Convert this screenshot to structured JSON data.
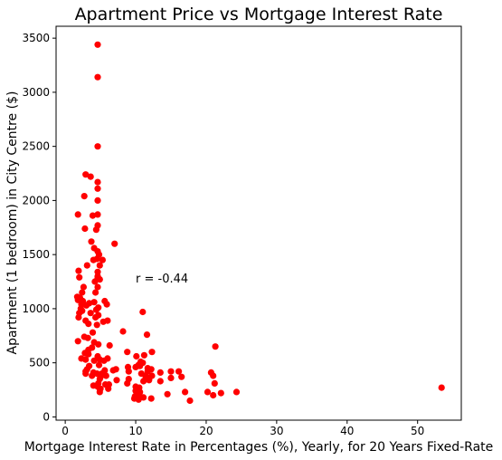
{
  "chart_data": {
    "type": "scatter",
    "title": "Apartment Price vs Mortgage Interest Rate",
    "xlabel": "Mortgage Interest Rate in Percentages (%), Yearly, for 20 Years Fixed-Rate",
    "ylabel": "Apartment (1 bedroom) in City Centre ($)",
    "xlim": [
      -1.3,
      56.2
    ],
    "ylim": [
      -30,
      3610
    ],
    "xticks": [
      0,
      10,
      20,
      30,
      40,
      50
    ],
    "yticks": [
      0,
      500,
      1000,
      1500,
      2000,
      2500,
      3000,
      3500
    ],
    "annotation": {
      "text": "r = -0.44",
      "x": 10,
      "y": 1240
    },
    "grid": false,
    "legend": "none",
    "color": "#ff0000",
    "points": [
      [
        4.6,
        3440
      ],
      [
        4.6,
        3140
      ],
      [
        4.6,
        2500
      ],
      [
        2.9,
        2240
      ],
      [
        3.6,
        2220
      ],
      [
        4.6,
        2170
      ],
      [
        4.6,
        2110
      ],
      [
        2.7,
        2040
      ],
      [
        4.6,
        2000
      ],
      [
        1.8,
        1870
      ],
      [
        4.6,
        1870
      ],
      [
        3.9,
        1860
      ],
      [
        4.6,
        1770
      ],
      [
        4.4,
        1730
      ],
      [
        2.8,
        1740
      ],
      [
        7.0,
        1600
      ],
      [
        3.7,
        1620
      ],
      [
        4.1,
        1560
      ],
      [
        4.6,
        1530
      ],
      [
        4.8,
        1500
      ],
      [
        4.5,
        1460
      ],
      [
        5.3,
        1450
      ],
      [
        4.0,
        1450
      ],
      [
        3.1,
        1400
      ],
      [
        4.9,
        1400
      ],
      [
        4.6,
        1340
      ],
      [
        1.9,
        1350
      ],
      [
        4.6,
        1300
      ],
      [
        4.6,
        1280
      ],
      [
        2.0,
        1290
      ],
      [
        4.9,
        1270
      ],
      [
        4.2,
        1250
      ],
      [
        2.6,
        1200
      ],
      [
        4.6,
        1200
      ],
      [
        4.3,
        1150
      ],
      [
        2.4,
        1150
      ],
      [
        1.7,
        1110
      ],
      [
        2.1,
        1100
      ],
      [
        2.5,
        1070
      ],
      [
        3.4,
        1050
      ],
      [
        1.8,
        1080
      ],
      [
        2.3,
        1040
      ],
      [
        4.1,
        1060
      ],
      [
        3.0,
        1030
      ],
      [
        5.6,
        1070
      ],
      [
        5.9,
        1040
      ],
      [
        4.7,
        1010
      ],
      [
        2.2,
        1000
      ],
      [
        4.4,
        990
      ],
      [
        2.4,
        980
      ],
      [
        2.0,
        960
      ],
      [
        11.0,
        970
      ],
      [
        3.6,
        960
      ],
      [
        4.7,
        940
      ],
      [
        1.9,
        920
      ],
      [
        4.3,
        920
      ],
      [
        2.9,
        890
      ],
      [
        6.0,
        890
      ],
      [
        5.4,
        880
      ],
      [
        3.3,
        860
      ],
      [
        4.5,
        850
      ],
      [
        3.9,
        780
      ],
      [
        8.2,
        790
      ],
      [
        11.6,
        760
      ],
      [
        2.7,
        740
      ],
      [
        3.2,
        730
      ],
      [
        1.8,
        700
      ],
      [
        4.1,
        690
      ],
      [
        4.7,
        670
      ],
      [
        6.3,
        660
      ],
      [
        21.3,
        650
      ],
      [
        3.8,
        640
      ],
      [
        3.3,
        620
      ],
      [
        2.8,
        590
      ],
      [
        8.8,
        600
      ],
      [
        12.3,
        600
      ],
      [
        3.3,
        580
      ],
      [
        4.6,
        560
      ],
      [
        2.3,
        540
      ],
      [
        11.2,
        570
      ],
      [
        10.1,
        560
      ],
      [
        4.9,
        530
      ],
      [
        6.0,
        540
      ],
      [
        4.1,
        520
      ],
      [
        2.9,
        530
      ],
      [
        5.5,
        520
      ],
      [
        11.0,
        500
      ],
      [
        10.4,
        480
      ],
      [
        4.8,
        480
      ],
      [
        3.4,
        470
      ],
      [
        10.0,
        460
      ],
      [
        10.6,
        470
      ],
      [
        8.9,
        460
      ],
      [
        11.7,
        450
      ],
      [
        12.2,
        440
      ],
      [
        6.8,
        430
      ],
      [
        5.6,
        430
      ],
      [
        7.2,
        440
      ],
      [
        9.0,
        420
      ],
      [
        2.9,
        420
      ],
      [
        4.0,
        410
      ],
      [
        4.5,
        400
      ],
      [
        5.2,
        400
      ],
      [
        11.7,
        420
      ],
      [
        10.8,
        400
      ],
      [
        20.7,
        410
      ],
      [
        13.5,
        410
      ],
      [
        15.0,
        420
      ],
      [
        16.1,
        420
      ],
      [
        2.9,
        400
      ],
      [
        3.8,
        380
      ],
      [
        5.0,
        370
      ],
      [
        5.8,
        380
      ],
      [
        11.4,
        380
      ],
      [
        12.3,
        380
      ],
      [
        21.0,
        380
      ],
      [
        16.5,
        370
      ],
      [
        15.0,
        360
      ],
      [
        4.9,
        350
      ],
      [
        7.3,
        340
      ],
      [
        9.0,
        350
      ],
      [
        11.9,
        340
      ],
      [
        13.5,
        330
      ],
      [
        11.1,
        330
      ],
      [
        8.8,
        310
      ],
      [
        4.7,
        310
      ],
      [
        5.7,
        300
      ],
      [
        6.2,
        300
      ],
      [
        4.0,
        290
      ],
      [
        4.6,
        280
      ],
      [
        10.0,
        280
      ],
      [
        10.5,
        270
      ],
      [
        4.9,
        260
      ],
      [
        5.0,
        260
      ],
      [
        6.1,
        260
      ],
      [
        10.0,
        240
      ],
      [
        10.6,
        230
      ],
      [
        17.0,
        230
      ],
      [
        10.3,
        220
      ],
      [
        24.3,
        230
      ],
      [
        22.1,
        220
      ],
      [
        20.2,
        230
      ],
      [
        14.5,
        210
      ],
      [
        21.0,
        200
      ],
      [
        10.1,
        200
      ],
      [
        10.6,
        190
      ],
      [
        11.1,
        180
      ],
      [
        9.8,
        170
      ],
      [
        12.2,
        170
      ],
      [
        10.4,
        160
      ],
      [
        17.7,
        150
      ],
      [
        53.4,
        270
      ],
      [
        4.9,
        230
      ],
      [
        10.2,
        260
      ],
      [
        11.4,
        350
      ],
      [
        9.9,
        190
      ],
      [
        3.1,
        440
      ],
      [
        21.2,
        310
      ],
      [
        11.9,
        360
      ],
      [
        10.7,
        510
      ]
    ]
  }
}
